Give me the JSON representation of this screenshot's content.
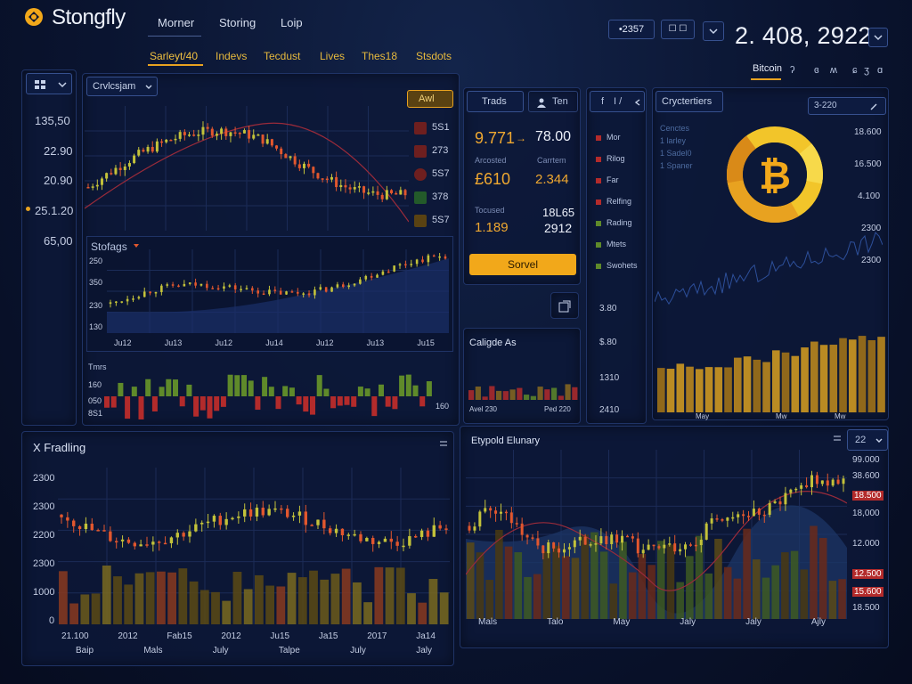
{
  "app": {
    "title": "Stongfly"
  },
  "nav": {
    "top": [
      "Morner",
      "Storing",
      "Loip"
    ],
    "sub": [
      "Sarleyt/40",
      "Indevs",
      "Tecdust",
      "Lives",
      "Thes18",
      "Stsdots"
    ]
  },
  "header": {
    "price_chip": "•2357",
    "date_chip": "☐ ☐",
    "big_price": "2. 408, 2922",
    "right_tabs": [
      "Bitcoin",
      "ʔ",
      "ɞ",
      "ʍ",
      "ɕ",
      "ʒ",
      "ɑ"
    ]
  },
  "left_sidebar": {
    "values": [
      "135,50",
      "22.90",
      "20.90",
      "25.1.20",
      "65,00"
    ]
  },
  "main_chart": {
    "selector": "Crvlcsjam",
    "badge": "Awl",
    "side_markers": [
      "5S1",
      "273",
      "5S7",
      "378",
      "5S7"
    ]
  },
  "sub_chart": {
    "title": "Stofags",
    "y_labels": [
      "250",
      "350",
      "230",
      "130"
    ],
    "x_labels": [
      "Ju12",
      "Ju13",
      "Ju12",
      "Ju14",
      "Ju12",
      "Ju13",
      "Ju15"
    ]
  },
  "volume_small": {
    "title": "Tmrs",
    "y_labels": [
      "160",
      "050",
      "8S1"
    ],
    "right_label": "160"
  },
  "trade_panel": {
    "tab_trade": "Trads",
    "tab_ten": "Ten",
    "price": "9.771",
    "arrow": "→",
    "price2": "78.00",
    "label_left": "Arcosted",
    "label_right": "Carrtem",
    "amount": "£610",
    "amount2": "2.344",
    "label_left2": "Tocused",
    "value3": "18L65",
    "value4": "1.189",
    "value5": "2912",
    "button": "Sorvel"
  },
  "list_panel": {
    "header_left": "f",
    "header_mid": "I /",
    "items": [
      "Mor",
      "Rilog",
      "Far",
      "Relfing",
      "Rading",
      "Mtets",
      "Swohets"
    ],
    "values": [
      "3.80",
      "$.80",
      "1310",
      "2410"
    ]
  },
  "collapse_panel": {
    "title": "Caligde As",
    "x_left": "Avel 230",
    "x_right": "Ped 220"
  },
  "crypto_panel": {
    "title": "Cryctertiers",
    "chip": "3-220",
    "legend": [
      "Cenctes",
      "1 larley",
      "1 Sadel0",
      "1 Spaner"
    ],
    "y_labels": [
      "18.600",
      "16.500",
      "4.100",
      "2300",
      "2300"
    ],
    "x_labels": [
      "May",
      "Mw",
      "Mw"
    ]
  },
  "trading_panel": {
    "title": "X Fradling",
    "y_labels": [
      "2300",
      "2300",
      "2200",
      "2300",
      "1000",
      "0"
    ],
    "x_labels": [
      "21.100",
      "2012",
      "Fab15",
      "2012",
      "Ju15",
      "Ja15",
      "2017",
      "Ja14"
    ],
    "x_labels2": [
      "Baip",
      "Mals",
      "July",
      "Talpe",
      "July",
      "Jaly"
    ]
  },
  "overlay_panel": {
    "title": "Etypold Elunary",
    "dd_value": "22",
    "y_labels": [
      "99.000",
      "38.600",
      "18.500",
      "18,000",
      "12.000",
      "12.500",
      "15.600",
      "18.500"
    ],
    "x_labels": [
      "Mals",
      "Talo",
      "May",
      "Jaly",
      "Jaly",
      "Ajly"
    ]
  },
  "colors": {
    "accent": "#e8a220",
    "up": "#c3c23a",
    "down": "#e2572e",
    "bar_red": "#b32b2b",
    "bar_green": "#5f8a2a",
    "bitcoin": "#f2a81a"
  }
}
